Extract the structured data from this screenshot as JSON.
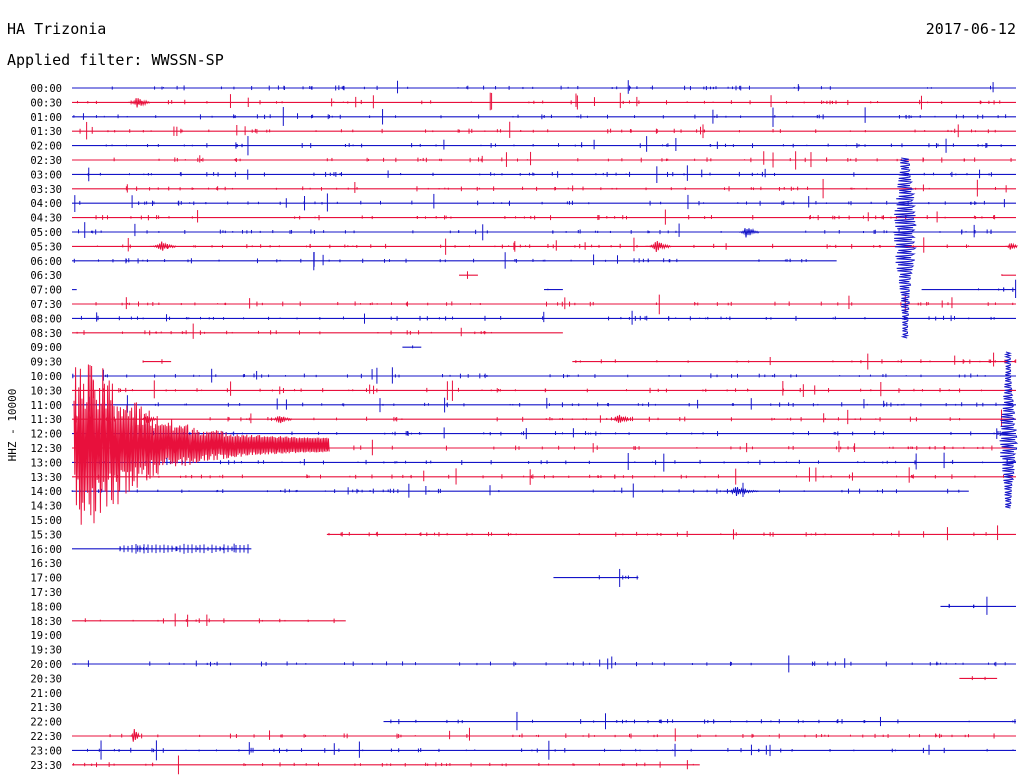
{
  "header": {
    "station": "HA Trizonia",
    "date": "2017-06-12",
    "filter": "Applied filter: WWSSN-SP"
  },
  "chart_data": {
    "type": "helicorder",
    "channel_label": "HHZ - 10000",
    "colors": {
      "blue": "#1414c8",
      "red": "#e8103c"
    },
    "rows": [
      "00:00",
      "00:30",
      "01:00",
      "01:30",
      "02:00",
      "02:30",
      "03:00",
      "03:30",
      "04:00",
      "04:30",
      "05:00",
      "05:30",
      "06:00",
      "06:30",
      "07:00",
      "07:30",
      "08:00",
      "08:30",
      "09:00",
      "09:30",
      "10:00",
      "10:30",
      "11:00",
      "11:30",
      "12:00",
      "12:30",
      "13:00",
      "13:30",
      "14:00",
      "14:30",
      "15:00",
      "15:30",
      "16:00",
      "16:30",
      "17:00",
      "17:30",
      "18:00",
      "18:30",
      "19:00",
      "19:30",
      "20:00",
      "20:30",
      "21:00",
      "21:30",
      "22:00",
      "22:30",
      "23:00",
      "23:30"
    ],
    "segments": [
      [
        [
          0,
          1
        ]
      ],
      [
        [
          0,
          1
        ]
      ],
      [
        [
          0,
          1
        ]
      ],
      [
        [
          0,
          1
        ]
      ],
      [
        [
          0,
          1
        ]
      ],
      [
        [
          0,
          1
        ]
      ],
      [
        [
          0,
          1
        ]
      ],
      [
        [
          0,
          1
        ]
      ],
      [
        [
          0,
          1
        ]
      ],
      [
        [
          0,
          1
        ]
      ],
      [
        [
          0,
          1
        ]
      ],
      [
        [
          0,
          1
        ]
      ],
      [
        [
          0,
          0.81
        ]
      ],
      [
        [
          0.41,
          0.43
        ],
        [
          0.985,
          1
        ]
      ],
      [
        [
          0,
          0.005
        ],
        [
          0.5,
          0.52
        ],
        [
          0.9,
          1
        ]
      ],
      [
        [
          0,
          1
        ]
      ],
      [
        [
          0,
          1
        ]
      ],
      [
        [
          0,
          0.52
        ]
      ],
      [
        [
          0.35,
          0.37
        ]
      ],
      [
        [
          0.075,
          0.105
        ],
        [
          0.53,
          1
        ]
      ],
      [
        [
          0,
          1
        ]
      ],
      [
        [
          0,
          1
        ]
      ],
      [
        [
          0,
          1
        ]
      ],
      [
        [
          0,
          1
        ]
      ],
      [
        [
          0,
          1
        ]
      ],
      [
        [
          0,
          1
        ]
      ],
      [
        [
          0,
          1
        ]
      ],
      [
        [
          0,
          1
        ]
      ],
      [
        [
          0,
          0.95
        ]
      ],
      [],
      [],
      [
        [
          0.27,
          1
        ]
      ],
      [
        [
          0,
          0.19
        ]
      ],
      [],
      [
        [
          0.51,
          0.6
        ]
      ],
      [],
      [
        [
          0.92,
          1
        ]
      ],
      [
        [
          0,
          0.29
        ]
      ],
      [],
      [],
      [
        [
          0,
          1
        ]
      ],
      [
        [
          0.94,
          0.98
        ]
      ],
      [],
      [],
      [
        [
          0.33,
          1
        ]
      ],
      [
        [
          0,
          1
        ]
      ],
      [
        [
          0,
          1
        ]
      ],
      [
        [
          0,
          0.665
        ]
      ]
    ]
  }
}
